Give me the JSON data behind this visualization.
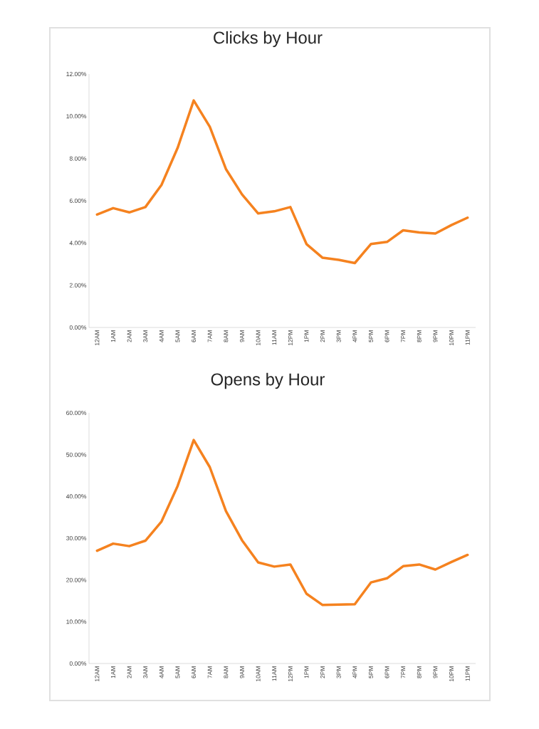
{
  "chart_data": [
    {
      "type": "line",
      "title": "Clicks by Hour",
      "categories": [
        "12AM",
        "1AM",
        "2AM",
        "3AM",
        "4AM",
        "5AM",
        "6AM",
        "7AM",
        "8AM",
        "9AM",
        "10AM",
        "11AM",
        "12PM",
        "1PM",
        "2PM",
        "3PM",
        "4PM",
        "5PM",
        "6PM",
        "7PM",
        "8PM",
        "9PM",
        "10PM",
        "11PM"
      ],
      "values": [
        5.35,
        5.65,
        5.45,
        5.7,
        6.75,
        8.5,
        10.75,
        9.5,
        7.5,
        6.3,
        5.4,
        5.5,
        5.7,
        3.95,
        3.3,
        3.2,
        3.05,
        3.95,
        4.05,
        4.6,
        4.5,
        4.45,
        4.85,
        5.2
      ],
      "color": "#f5821f",
      "ylim": [
        0,
        12
      ],
      "yticks": [
        {
          "value": 0,
          "label": "0.00%"
        },
        {
          "value": 2,
          "label": "2.00%"
        },
        {
          "value": 4,
          "label": "4.00%"
        },
        {
          "value": 6,
          "label": "6.00%"
        },
        {
          "value": 8,
          "label": "8.00%"
        },
        {
          "value": 10,
          "label": "10.00%"
        },
        {
          "value": 12,
          "label": "12.00%"
        }
      ]
    },
    {
      "type": "line",
      "title": "Opens by Hour",
      "categories": [
        "12AM",
        "1AM",
        "2AM",
        "3AM",
        "4AM",
        "5AM",
        "6AM",
        "7AM",
        "8AM",
        "9AM",
        "10AM",
        "11AM",
        "12PM",
        "1PM",
        "2PM",
        "3PM",
        "4PM",
        "5PM",
        "6PM",
        "7PM",
        "8PM",
        "9PM",
        "10PM",
        "11PM"
      ],
      "values": [
        27,
        28.7,
        28.1,
        29.4,
        34,
        42.5,
        53.5,
        47,
        36.5,
        29.5,
        24.2,
        23.2,
        23.7,
        16.7,
        14,
        14.1,
        14.2,
        19.4,
        20.4,
        23.3,
        23.7,
        22.5,
        24.3,
        26
      ],
      "color": "#f5821f",
      "ylim": [
        0,
        60
      ],
      "yticks": [
        {
          "value": 0,
          "label": "0.00%"
        },
        {
          "value": 10,
          "label": "10.00%"
        },
        {
          "value": 20,
          "label": "20.00%"
        },
        {
          "value": 30,
          "label": "30.00%"
        },
        {
          "value": 40,
          "label": "40.00%"
        },
        {
          "value": 50,
          "label": "50.00%"
        },
        {
          "value": 60,
          "label": "60.00%"
        }
      ]
    }
  ]
}
